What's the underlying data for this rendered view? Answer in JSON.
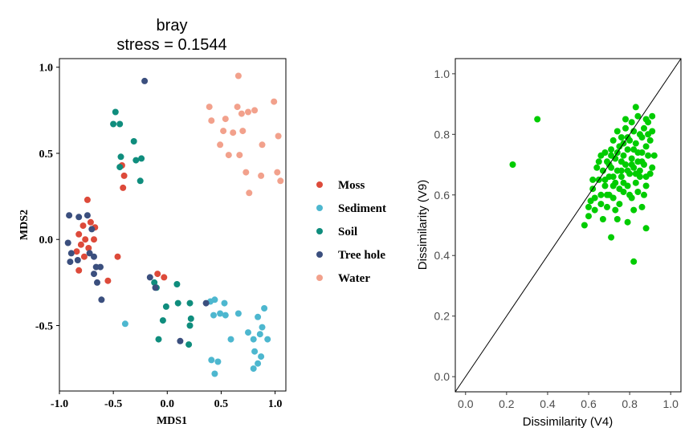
{
  "chart_data": [
    {
      "type": "scatter",
      "title": "bray",
      "subtitle": "stress = 0.1544",
      "xlabel": "MDS1",
      "ylabel": "MDS2",
      "xlim": [
        -1.0,
        1.1
      ],
      "ylim": [
        -0.88,
        1.05
      ],
      "xticks": [
        -1.0,
        -0.5,
        0.0,
        0.5,
        1.0
      ],
      "xtick_labels": [
        "-1.0",
        "-0.5",
        "0.0",
        "0.5",
        "1.0"
      ],
      "yticks": [
        -0.5,
        0.0,
        0.5,
        1.0
      ],
      "ytick_labels": [
        "-0.5",
        "0.0",
        "0.5",
        "1.0"
      ],
      "legend_position": "right",
      "series": [
        {
          "name": "Moss",
          "color": "#dd4a3a",
          "points": [
            [
              -0.74,
              0.23
            ],
            [
              -0.78,
              0.08
            ],
            [
              -0.71,
              0.1
            ],
            [
              -0.67,
              0.07
            ],
            [
              -0.82,
              0.03
            ],
            [
              -0.76,
              0.0
            ],
            [
              -0.68,
              0.0
            ],
            [
              -0.8,
              -0.03
            ],
            [
              -0.73,
              -0.05
            ],
            [
              -0.84,
              -0.07
            ],
            [
              -0.77,
              -0.1
            ],
            [
              -0.82,
              -0.18
            ],
            [
              -0.55,
              -0.24
            ],
            [
              -0.46,
              -0.1
            ],
            [
              -0.42,
              0.43
            ],
            [
              -0.4,
              0.37
            ],
            [
              -0.41,
              0.3
            ],
            [
              -0.09,
              -0.2
            ],
            [
              -0.03,
              -0.22
            ]
          ]
        },
        {
          "name": "Sediment",
          "color": "#4db7cf",
          "points": [
            [
              -0.39,
              -0.49
            ],
            [
              0.4,
              -0.36
            ],
            [
              0.44,
              -0.35
            ],
            [
              0.43,
              -0.44
            ],
            [
              0.49,
              -0.43
            ],
            [
              0.53,
              -0.37
            ],
            [
              0.54,
              -0.44
            ],
            [
              0.59,
              -0.58
            ],
            [
              0.41,
              -0.7
            ],
            [
              0.47,
              -0.71
            ],
            [
              0.44,
              -0.78
            ],
            [
              0.66,
              -0.43
            ],
            [
              0.75,
              -0.54
            ],
            [
              0.8,
              -0.58
            ],
            [
              0.86,
              -0.55
            ],
            [
              0.88,
              -0.51
            ],
            [
              0.9,
              -0.4
            ],
            [
              0.84,
              -0.45
            ],
            [
              0.93,
              -0.58
            ],
            [
              0.81,
              -0.65
            ],
            [
              0.87,
              -0.68
            ],
            [
              0.84,
              -0.72
            ],
            [
              0.8,
              -0.75
            ]
          ]
        },
        {
          "name": "Soil",
          "color": "#0f8d7d",
          "points": [
            [
              -0.48,
              0.74
            ],
            [
              -0.5,
              0.67
            ],
            [
              -0.44,
              0.67
            ],
            [
              -0.31,
              0.57
            ],
            [
              -0.43,
              0.48
            ],
            [
              -0.29,
              0.46
            ],
            [
              -0.24,
              0.47
            ],
            [
              -0.44,
              0.42
            ],
            [
              -0.25,
              0.34
            ],
            [
              -0.12,
              -0.25
            ],
            [
              -0.1,
              -0.28
            ],
            [
              -0.01,
              -0.39
            ],
            [
              0.09,
              -0.26
            ],
            [
              0.1,
              -0.37
            ],
            [
              0.21,
              -0.37
            ],
            [
              -0.04,
              -0.47
            ],
            [
              0.22,
              -0.46
            ],
            [
              0.21,
              -0.5
            ],
            [
              -0.08,
              -0.58
            ],
            [
              0.2,
              -0.61
            ]
          ]
        },
        {
          "name": "Tree hole",
          "color": "#3b4f7e",
          "points": [
            [
              -0.21,
              0.92
            ],
            [
              -0.91,
              0.14
            ],
            [
              -0.82,
              0.13
            ],
            [
              -0.74,
              0.14
            ],
            [
              -0.7,
              0.06
            ],
            [
              -0.92,
              -0.02
            ],
            [
              -0.89,
              -0.08
            ],
            [
              -0.72,
              -0.08
            ],
            [
              -0.68,
              -0.1
            ],
            [
              -0.9,
              -0.13
            ],
            [
              -0.83,
              -0.12
            ],
            [
              -0.66,
              -0.16
            ],
            [
              -0.62,
              -0.16
            ],
            [
              -0.68,
              -0.2
            ],
            [
              -0.65,
              -0.25
            ],
            [
              -0.61,
              -0.35
            ],
            [
              -0.16,
              -0.22
            ],
            [
              -0.11,
              -0.28
            ],
            [
              0.12,
              -0.59
            ],
            [
              0.36,
              -0.37
            ]
          ]
        },
        {
          "name": "Water",
          "color": "#f2a18c",
          "points": [
            [
              0.66,
              0.95
            ],
            [
              0.39,
              0.77
            ],
            [
              0.65,
              0.77
            ],
            [
              0.81,
              0.75
            ],
            [
              0.99,
              0.8
            ],
            [
              0.41,
              0.69
            ],
            [
              0.54,
              0.7
            ],
            [
              0.69,
              0.73
            ],
            [
              0.75,
              0.74
            ],
            [
              0.61,
              0.62
            ],
            [
              0.7,
              0.63
            ],
            [
              0.52,
              0.63
            ],
            [
              0.49,
              0.55
            ],
            [
              0.67,
              0.49
            ],
            [
              0.57,
              0.49
            ],
            [
              0.88,
              0.55
            ],
            [
              1.03,
              0.6
            ],
            [
              0.73,
              0.39
            ],
            [
              0.87,
              0.37
            ],
            [
              1.02,
              0.39
            ],
            [
              0.76,
              0.27
            ],
            [
              1.05,
              0.34
            ]
          ]
        }
      ]
    },
    {
      "type": "scatter",
      "title": "",
      "xlabel": "Dissimilarity (V4)",
      "ylabel": "Dissimilarity (V9)",
      "xlim": [
        -0.05,
        1.05
      ],
      "ylim": [
        -0.05,
        1.05
      ],
      "xticks": [
        0.0,
        0.2,
        0.4,
        0.6,
        0.8,
        1.0
      ],
      "xtick_labels": [
        "0.0",
        "0.2",
        "0.4",
        "0.6",
        "0.8",
        "1.0"
      ],
      "yticks": [
        0.0,
        0.2,
        0.4,
        0.6,
        0.8,
        1.0
      ],
      "ytick_labels": [
        "0.0",
        "0.2",
        "0.4",
        "0.6",
        "0.8",
        "1.0"
      ],
      "reference_line": "y = x",
      "point_color": "#00cc00",
      "points": [
        [
          0.23,
          0.7
        ],
        [
          0.35,
          0.85
        ],
        [
          0.82,
          0.38
        ],
        [
          0.71,
          0.46
        ],
        [
          0.88,
          0.49
        ],
        [
          0.58,
          0.5
        ],
        [
          0.6,
          0.53
        ],
        [
          0.63,
          0.55
        ],
        [
          0.67,
          0.52
        ],
        [
          0.74,
          0.52
        ],
        [
          0.79,
          0.51
        ],
        [
          0.82,
          0.55
        ],
        [
          0.69,
          0.56
        ],
        [
          0.75,
          0.57
        ],
        [
          0.86,
          0.56
        ],
        [
          0.61,
          0.58
        ],
        [
          0.66,
          0.6
        ],
        [
          0.72,
          0.59
        ],
        [
          0.77,
          0.61
        ],
        [
          0.81,
          0.59
        ],
        [
          0.84,
          0.61
        ],
        [
          0.62,
          0.62
        ],
        [
          0.68,
          0.63
        ],
        [
          0.73,
          0.64
        ],
        [
          0.79,
          0.63
        ],
        [
          0.83,
          0.64
        ],
        [
          0.88,
          0.63
        ],
        [
          0.65,
          0.65
        ],
        [
          0.7,
          0.66
        ],
        [
          0.76,
          0.66
        ],
        [
          0.8,
          0.67
        ],
        [
          0.85,
          0.66
        ],
        [
          0.9,
          0.67
        ],
        [
          0.67,
          0.68
        ],
        [
          0.71,
          0.69
        ],
        [
          0.74,
          0.68
        ],
        [
          0.78,
          0.7
        ],
        [
          0.82,
          0.69
        ],
        [
          0.87,
          0.7
        ],
        [
          0.69,
          0.71
        ],
        [
          0.73,
          0.72
        ],
        [
          0.77,
          0.73
        ],
        [
          0.81,
          0.72
        ],
        [
          0.84,
          0.74
        ],
        [
          0.89,
          0.73
        ],
        [
          0.66,
          0.73
        ],
        [
          0.71,
          0.75
        ],
        [
          0.75,
          0.76
        ],
        [
          0.79,
          0.75
        ],
        [
          0.83,
          0.77
        ],
        [
          0.88,
          0.76
        ],
        [
          0.9,
          0.78
        ],
        [
          0.72,
          0.78
        ],
        [
          0.76,
          0.79
        ],
        [
          0.8,
          0.78
        ],
        [
          0.85,
          0.8
        ],
        [
          0.74,
          0.81
        ],
        [
          0.78,
          0.82
        ],
        [
          0.82,
          0.81
        ],
        [
          0.87,
          0.82
        ],
        [
          0.81,
          0.84
        ],
        [
          0.84,
          0.86
        ],
        [
          0.88,
          0.85
        ],
        [
          0.83,
          0.89
        ],
        [
          0.86,
          0.79
        ],
        [
          0.91,
          0.81
        ],
        [
          0.92,
          0.73
        ],
        [
          0.89,
          0.84
        ],
        [
          0.7,
          0.6
        ],
        [
          0.77,
          0.64
        ],
        [
          0.64,
          0.69
        ],
        [
          0.68,
          0.74
        ],
        [
          0.76,
          0.71
        ],
        [
          0.86,
          0.71
        ],
        [
          0.72,
          0.66
        ],
        [
          0.79,
          0.68
        ],
        [
          0.63,
          0.59
        ],
        [
          0.66,
          0.57
        ],
        [
          0.8,
          0.6
        ],
        [
          0.86,
          0.74
        ],
        [
          0.7,
          0.7
        ],
        [
          0.74,
          0.74
        ],
        [
          0.82,
          0.75
        ],
        [
          0.75,
          0.62
        ],
        [
          0.69,
          0.6
        ],
        [
          0.6,
          0.56
        ],
        [
          0.85,
          0.68
        ],
        [
          0.91,
          0.86
        ],
        [
          0.78,
          0.85
        ],
        [
          0.71,
          0.73
        ],
        [
          0.84,
          0.71
        ],
        [
          0.65,
          0.71
        ],
        [
          0.87,
          0.6
        ],
        [
          0.73,
          0.55
        ],
        [
          0.79,
          0.79
        ],
        [
          0.83,
          0.67
        ],
        [
          0.68,
          0.65
        ],
        [
          0.91,
          0.69
        ],
        [
          0.76,
          0.68
        ],
        [
          0.81,
          0.7
        ],
        [
          0.72,
          0.63
        ],
        [
          0.88,
          0.66
        ],
        [
          0.62,
          0.65
        ],
        [
          0.77,
          0.77
        ],
        [
          0.89,
          0.8
        ]
      ]
    }
  ]
}
